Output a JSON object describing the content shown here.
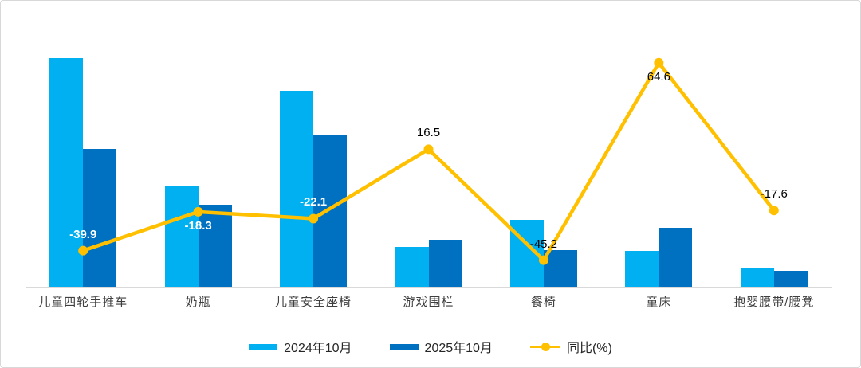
{
  "chart_data": {
    "type": "bar",
    "subtype": "grouped-bars-with-line-overlay",
    "title": "",
    "categories": [
      "儿童四轮手推车",
      "奶瓶",
      "儿童安全座椅",
      "游戏围栏",
      "餐椅",
      "童床",
      "抱婴腰带/腰凳"
    ],
    "series": [
      {
        "name": "2024年10月",
        "type": "bar",
        "color": "#00b0f0",
        "values": [
          100,
          44,
          85.5,
          17.5,
          29.2,
          15.7,
          8.4
        ]
      },
      {
        "name": "2025年10月",
        "type": "bar",
        "color": "#0070c0",
        "values": [
          60.1,
          35.9,
          66.6,
          20.4,
          16.0,
          25.8,
          6.9
        ]
      },
      {
        "name": "同比(%)",
        "type": "line",
        "color": "#ffc000",
        "values": [
          -39.9,
          -18.3,
          -22.1,
          16.5,
          -45.2,
          64.6,
          -17.6
        ],
        "point_labels": [
          "-39.9",
          "-18.3",
          "-22.1",
          "16.5",
          "-45.2",
          "64.6",
          "-17.6"
        ],
        "point_label_colors": [
          "#ffffff",
          "#ffffff",
          "#ffffff",
          "#000000",
          "#000000",
          "#000000",
          "#000000"
        ],
        "point_label_positions": [
          "above",
          "below",
          "above",
          "above",
          "above",
          "below",
          "above"
        ]
      }
    ],
    "xlabel": "",
    "ylabel": "",
    "primary_axis": {
      "visible": false,
      "min": 0,
      "max": 110
    },
    "secondary_axis": {
      "visible": false,
      "min": -60,
      "max": 80
    },
    "grid": false,
    "legend_position": "bottom",
    "axis_line_color": "#d9d9d9",
    "category_label_color": "#3f3f3f"
  }
}
